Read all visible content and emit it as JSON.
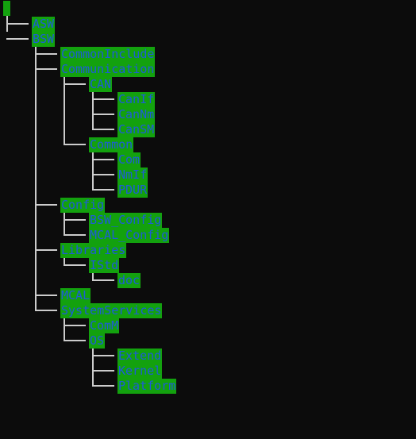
{
  "terminal": {
    "colors": {
      "background": "#0c0c0c",
      "highlight": "#13a10e",
      "dir_text": "#1e5bd8",
      "tree_lines": "#cccccc"
    }
  },
  "tree": {
    "asw": "ASW",
    "bsw": "BSW",
    "common_include": "CommonInclude",
    "communication": "Communication",
    "can": "CAN",
    "canif": "CanIf",
    "cannm": "CanNm",
    "cansm": "CanSM",
    "common": "Common",
    "com": "Com",
    "nmif": "NmIf",
    "pdur": "PDUR",
    "config": "Config",
    "bsw_config": "BSW_Config",
    "mcal_config": "MCAL_Config",
    "libraries": "Libraries",
    "istd": "IStd",
    "doc": "doc",
    "mcal": "MCAL",
    "system_services": "SystemServices",
    "comm": "ComM",
    "os": "OS",
    "extend": "Extend",
    "kernel": "Kernel",
    "platform": "Platform"
  }
}
